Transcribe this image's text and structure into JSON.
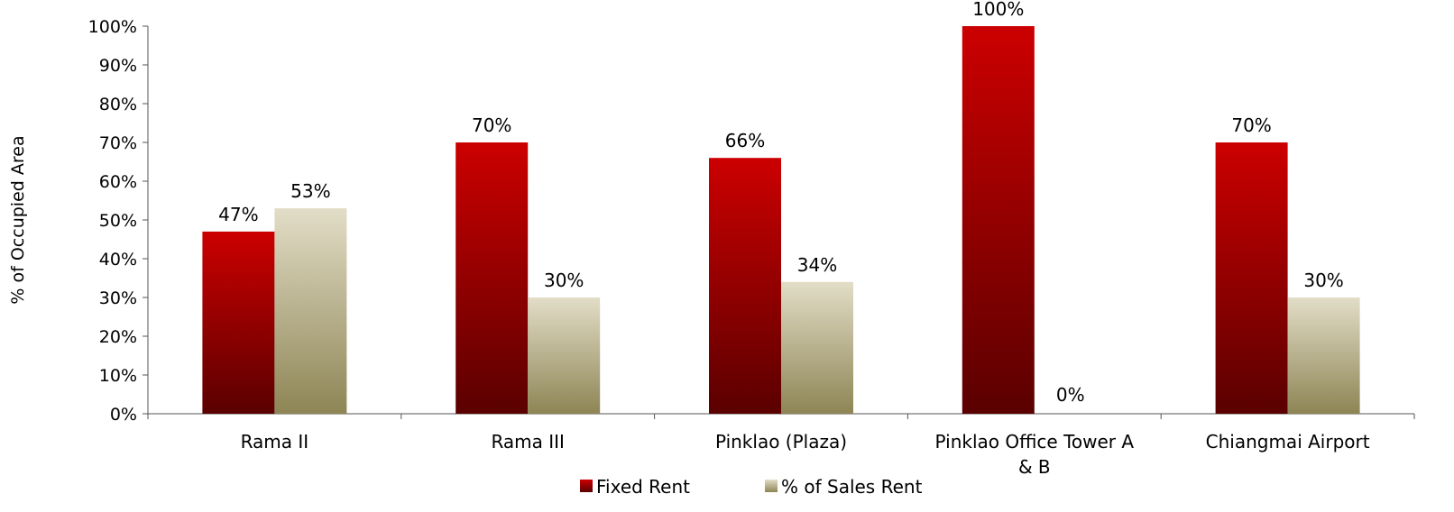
{
  "chart_data": {
    "type": "bar",
    "ylabel": "% of Occupied Area",
    "xlabel": "",
    "ylim": [
      0,
      100
    ],
    "yticks": [
      "0%",
      "10%",
      "20%",
      "30%",
      "40%",
      "50%",
      "60%",
      "70%",
      "80%",
      "90%",
      "100%"
    ],
    "categories": [
      [
        "Rama II"
      ],
      [
        "Rama III"
      ],
      [
        "Pinklao (Plaza)"
      ],
      [
        "Pinklao Office Tower A",
        "& B"
      ],
      [
        "Chiangmai Airport"
      ]
    ],
    "series": [
      {
        "name": "Fixed Rent",
        "values": [
          47,
          70,
          66,
          100,
          70
        ],
        "labels": [
          "47%",
          "70%",
          "66%",
          "100%",
          "70%"
        ],
        "color_top": "#cc0000",
        "color_bottom": "#5a0000"
      },
      {
        "name": "% of Sales Rent",
        "values": [
          53,
          30,
          34,
          0,
          30
        ],
        "labels": [
          "53%",
          "30%",
          "34%",
          "0%",
          "30%"
        ],
        "color_top": "#e2ddc7",
        "color_bottom": "#8e8555"
      }
    ],
    "legend": "bottom-center",
    "grid": false
  }
}
